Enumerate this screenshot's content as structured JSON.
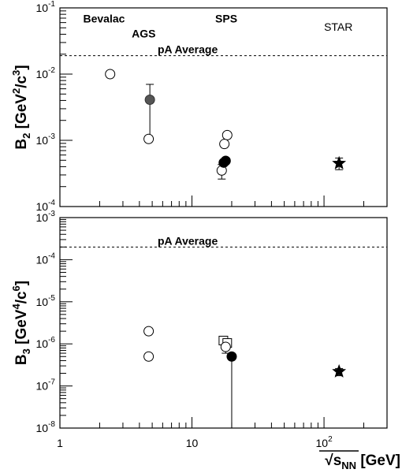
{
  "chart_data": [
    {
      "type": "scatter",
      "panel": "top",
      "ylabel": {
        "base": "B",
        "sub": "2",
        "unit": "[GeV",
        "unit_sup": "2",
        "unit_mid": "/c",
        "unit_sup2": "3",
        "unit_end": "]"
      },
      "xscale": "log",
      "yscale": "log",
      "xlim": [
        1,
        300
      ],
      "ylim": [
        0.0001,
        0.1
      ],
      "yticks": [
        {
          "mant": "10",
          "exp": "-4",
          "value": 0.0001
        },
        {
          "mant": "10",
          "exp": "-3",
          "value": 0.001
        },
        {
          "mant": "10",
          "exp": "-2",
          "value": 0.01
        },
        {
          "mant": "10",
          "exp": "-1",
          "value": 0.1
        }
      ],
      "reference_line": {
        "label": "pA Average",
        "value": 0.019,
        "style": "dashed"
      },
      "annotations": [
        {
          "text": "Bevalac",
          "x": 1.5,
          "y": 0.06,
          "bold": true
        },
        {
          "text": "AGS",
          "x": 3.5,
          "y": 0.036,
          "bold": true
        },
        {
          "text": "SPS",
          "x": 15,
          "y": 0.06,
          "bold": true
        },
        {
          "text": "STAR",
          "x": 100,
          "y": 0.045,
          "bold": false
        }
      ],
      "points": [
        {
          "marker": "open-circle",
          "x": 2.4,
          "y": 0.01
        },
        {
          "marker": "filled-circle-gray",
          "x": 4.8,
          "y": 0.0041,
          "err_up": 0.007,
          "err_down": 0.00105
        },
        {
          "marker": "open-circle",
          "x": 4.7,
          "y": 0.00105
        },
        {
          "marker": "open-circle",
          "x": 18.5,
          "y": 0.0012
        },
        {
          "marker": "open-circle",
          "x": 17.6,
          "y": 0.00088
        },
        {
          "marker": "open-circle",
          "x": 16.8,
          "y": 0.00035,
          "err_up": 0.00043,
          "err_down": 0.00026
        },
        {
          "marker": "filled-circle",
          "x": 17.4,
          "y": 0.00046
        },
        {
          "marker": "filled-circle",
          "x": 18.0,
          "y": 0.00049
        },
        {
          "marker": "filled-star",
          "x": 130,
          "y": 0.00045,
          "err_up": 0.00054,
          "err_down": 0.00036
        }
      ]
    },
    {
      "type": "scatter",
      "panel": "bottom",
      "ylabel": {
        "base": "B",
        "sub": "3",
        "unit": "[GeV",
        "unit_sup": "4",
        "unit_mid": "/c",
        "unit_sup2": "6",
        "unit_end": "]"
      },
      "xlabel": {
        "prefix": "√",
        "base": "s",
        "sub": "NN",
        "unit": "[GeV]"
      },
      "xscale": "log",
      "yscale": "log",
      "xlim": [
        1,
        300
      ],
      "ylim": [
        1e-08,
        0.001
      ],
      "xticks": [
        {
          "label": "1",
          "value": 1
        },
        {
          "label": "10",
          "value": 10
        },
        {
          "mant": "10",
          "exp": "2",
          "value": 100
        }
      ],
      "yticks": [
        {
          "mant": "10",
          "exp": "-8",
          "value": 1e-08
        },
        {
          "mant": "10",
          "exp": "-7",
          "value": 1e-07
        },
        {
          "mant": "10",
          "exp": "-6",
          "value": 1e-06
        },
        {
          "mant": "10",
          "exp": "-5",
          "value": 1e-05
        },
        {
          "mant": "10",
          "exp": "-4",
          "value": 0.0001
        },
        {
          "mant": "10",
          "exp": "-3",
          "value": 0.001
        }
      ],
      "reference_line": {
        "label": "pA Average",
        "value": 0.0002,
        "style": "dashed"
      },
      "points": [
        {
          "marker": "open-circle",
          "x": 4.7,
          "y": 2e-06
        },
        {
          "marker": "open-circle",
          "x": 4.7,
          "y": 5e-07
        },
        {
          "marker": "open-square",
          "x": 17.3,
          "y": 1.2e-06
        },
        {
          "marker": "open-square",
          "x": 18.5,
          "y": 1.05e-06
        },
        {
          "marker": "open-circle",
          "x": 18.0,
          "y": 8.5e-07,
          "err_up": 1.1e-06,
          "err_down": 6e-07
        },
        {
          "marker": "filled-circle",
          "x": 20.0,
          "y": 5e-07,
          "err_down": 1e-08
        },
        {
          "marker": "filled-star",
          "x": 130,
          "y": 2.2e-07,
          "err_up": 2.6e-07,
          "err_down": 1.75e-07
        }
      ]
    }
  ]
}
